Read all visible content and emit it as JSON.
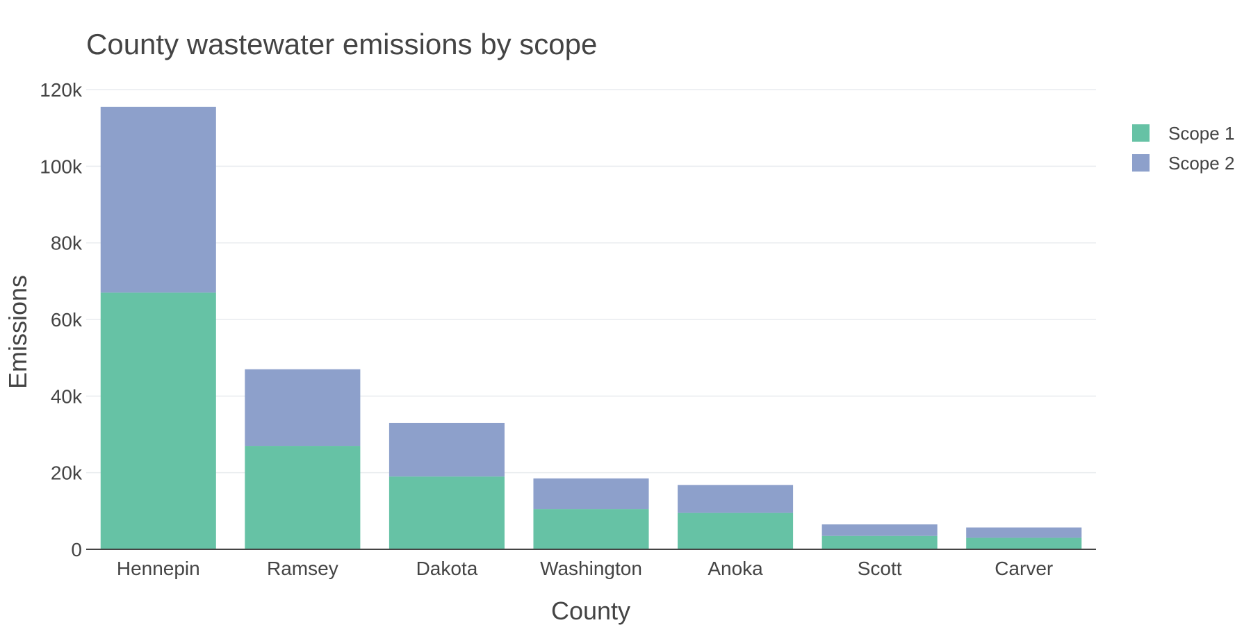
{
  "chart_data": {
    "type": "bar",
    "stacked": true,
    "title": "County wastewater emissions by scope",
    "xlabel": "County",
    "ylabel": "Emissions",
    "categories": [
      "Hennepin",
      "Ramsey",
      "Dakota",
      "Washington",
      "Anoka",
      "Scott",
      "Carver"
    ],
    "series": [
      {
        "name": "Scope 1",
        "color": "#66c2a5",
        "values": [
          67000,
          27000,
          19000,
          10500,
          9500,
          3500,
          3000
        ]
      },
      {
        "name": "Scope 2",
        "color": "#8da0cb",
        "values": [
          48500,
          20000,
          14000,
          8000,
          7300,
          3000,
          2700
        ]
      }
    ],
    "ylim": [
      0,
      122000
    ],
    "yticks": [
      0,
      20000,
      40000,
      60000,
      80000,
      100000,
      120000
    ],
    "ytick_labels": [
      "0",
      "20k",
      "40k",
      "60k",
      "80k",
      "100k",
      "120k"
    ],
    "grid": true,
    "legend_position": "top-right"
  }
}
